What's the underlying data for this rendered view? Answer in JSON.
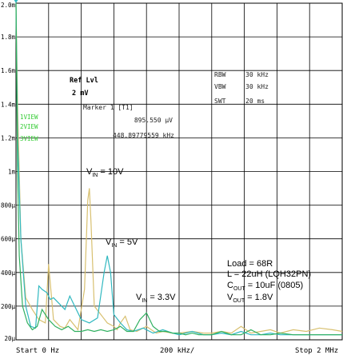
{
  "chart_data": {
    "type": "line",
    "x_axis": {
      "start_label": "Start 0 Hz",
      "center_label": "200 kHz/",
      "stop_label": "Stop 2 MHz",
      "unit": "kHz",
      "range": [
        0,
        2000
      ]
    },
    "y_axis": {
      "range": [
        0,
        2
      ],
      "unit": "mV",
      "tick_labels": [
        "2.0m",
        "1.8m",
        "1.6m",
        "1.4m",
        "1.2m",
        "1m",
        "800μ",
        "600μ",
        "400μ",
        "200μ",
        "20μ"
      ]
    },
    "grid": true,
    "analyzer": {
      "ref_level": "Ref Lvl",
      "ref_value": "2 mV",
      "marker_label": "Marker 1 [T1]",
      "marker_amplitude": "895.550 μV",
      "marker_frequency": "448.89779559 kHz",
      "rbw_label": "RBW",
      "rbw_value": "30 kHz",
      "vbw_label": "VBW",
      "vbw_value": "30 kHz",
      "swt_label": "SWT",
      "swt_value": "20 ms",
      "trace_labels": [
        "1VIEW",
        "2VIEW",
        "3VIEW"
      ]
    },
    "series": [
      {
        "name": "10V",
        "color": "#d8c070",
        "x": [
          0,
          10,
          30,
          60,
          100,
          140,
          180,
          200,
          230,
          270,
          300,
          330,
          380,
          420,
          440,
          450,
          460,
          480,
          520,
          560,
          600,
          620,
          640,
          670,
          700,
          740,
          800,
          860,
          900,
          960,
          1000,
          1080,
          1150,
          1200,
          1260,
          1320,
          1380,
          1440,
          1500,
          1560,
          1620,
          1700,
          1780,
          1860,
          1940,
          2000
        ],
        "y": [
          2.0,
          1.4,
          0.6,
          0.25,
          0.18,
          0.12,
          0.1,
          0.45,
          0.12,
          0.08,
          0.07,
          0.12,
          0.06,
          0.3,
          0.83,
          0.9,
          0.7,
          0.2,
          0.15,
          0.1,
          0.08,
          0.06,
          0.1,
          0.14,
          0.06,
          0.05,
          0.08,
          0.04,
          0.05,
          0.04,
          0.04,
          0.05,
          0.04,
          0.04,
          0.05,
          0.04,
          0.08,
          0.04,
          0.05,
          0.06,
          0.04,
          0.06,
          0.05,
          0.07,
          0.06,
          0.05
        ]
      },
      {
        "name": "5V",
        "color": "#30b8c0",
        "x": [
          0,
          10,
          30,
          60,
          90,
          120,
          140,
          160,
          190,
          210,
          230,
          260,
          300,
          330,
          360,
          400,
          450,
          500,
          540,
          560,
          580,
          600,
          640,
          680,
          720,
          780,
          840,
          900,
          960,
          1000,
          1080,
          1150,
          1200,
          1260,
          1320,
          1380,
          1440,
          1500,
          1560,
          1620,
          1700,
          1780,
          1860,
          1940,
          2000
        ],
        "y": [
          2.0,
          1.2,
          0.6,
          0.2,
          0.08,
          0.07,
          0.32,
          0.3,
          0.28,
          0.24,
          0.25,
          0.22,
          0.18,
          0.26,
          0.2,
          0.12,
          0.1,
          0.13,
          0.4,
          0.5,
          0.4,
          0.15,
          0.1,
          0.06,
          0.05,
          0.07,
          0.04,
          0.06,
          0.04,
          0.03,
          0.05,
          0.03,
          0.03,
          0.04,
          0.03,
          0.05,
          0.03,
          0.03,
          0.04,
          0.03,
          0.03,
          0.03,
          0.03,
          0.03,
          0.03
        ]
      },
      {
        "name": "3.3V",
        "color": "#30b060",
        "x": [
          0,
          10,
          20,
          40,
          70,
          100,
          130,
          160,
          200,
          240,
          280,
          320,
          360,
          400,
          440,
          480,
          520,
          560,
          600,
          640,
          680,
          720,
          760,
          800,
          840,
          880,
          920,
          960,
          1000,
          1040,
          1080,
          1120,
          1200,
          1260,
          1320,
          1380,
          1440,
          1500,
          1560,
          1620,
          1700,
          1780,
          1860,
          1940,
          2000
        ],
        "y": [
          2.0,
          1.0,
          0.5,
          0.2,
          0.1,
          0.06,
          0.08,
          0.18,
          0.12,
          0.08,
          0.06,
          0.08,
          0.05,
          0.05,
          0.06,
          0.05,
          0.06,
          0.05,
          0.06,
          0.08,
          0.05,
          0.05,
          0.12,
          0.16,
          0.08,
          0.05,
          0.05,
          0.04,
          0.04,
          0.03,
          0.04,
          0.03,
          0.03,
          0.05,
          0.03,
          0.03,
          0.06,
          0.03,
          0.03,
          0.04,
          0.03,
          0.03,
          0.03,
          0.03,
          0.03
        ]
      }
    ],
    "annotations": {
      "vin_10": {
        "prefix": "V",
        "sub": "IN",
        "suffix": " = 10V"
      },
      "vin_5": {
        "prefix": "V",
        "sub": "IN",
        "suffix": " = 5V"
      },
      "vin_33": {
        "prefix": "V",
        "sub": "IN",
        "suffix": " = 3.3V"
      },
      "conditions": [
        {
          "text": "Load = 68R"
        },
        {
          "text": "L = 22uH (LQH32PN)"
        },
        {
          "text": "C",
          "sub": "OUT",
          "suffix": " = 10uF (0805)"
        },
        {
          "text": "V",
          "sub": "OUT",
          "suffix": " = 1.8V"
        }
      ]
    }
  }
}
